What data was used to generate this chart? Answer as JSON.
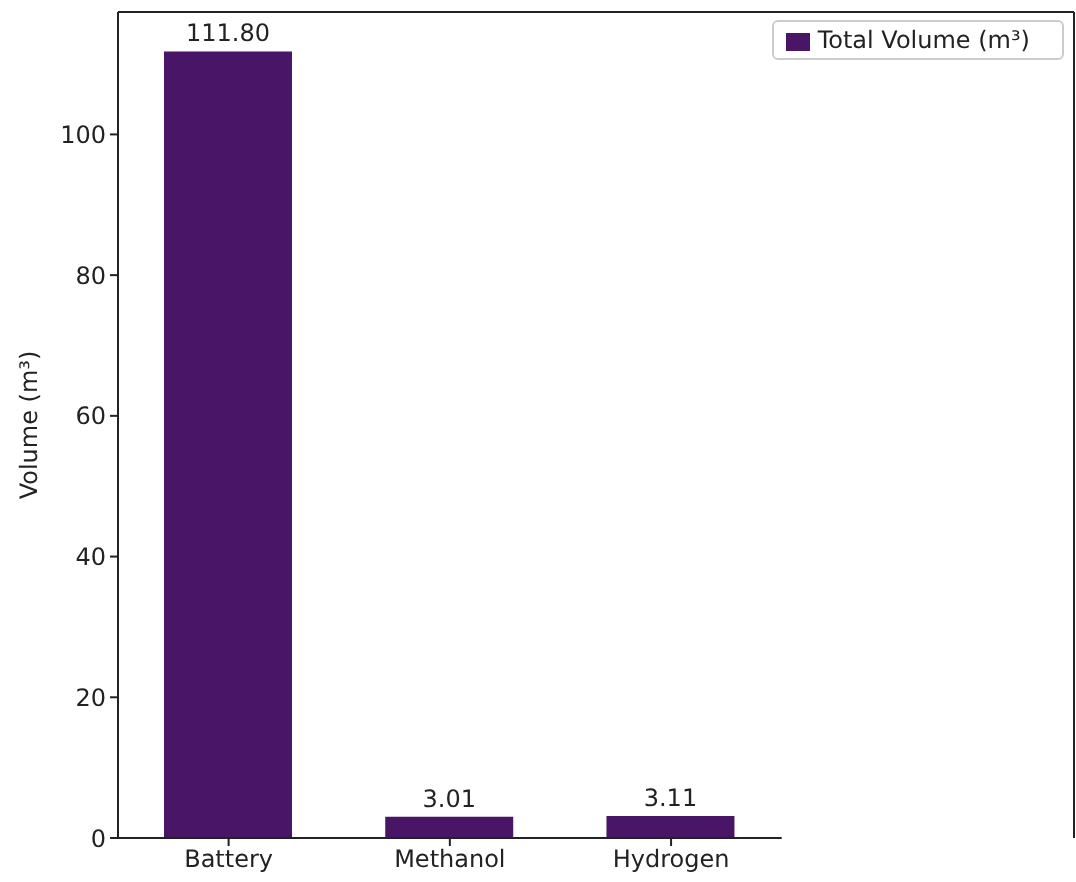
{
  "chart_data": {
    "type": "bar",
    "ylabel": "Volume (m³)",
    "categories": [
      "Battery",
      "Methanol",
      "Hydrogen"
    ],
    "series": [
      {
        "name": "Total Volume (m³)",
        "color": "#481567",
        "values": [
          111.8,
          3.01,
          3.11
        ],
        "value_labels": [
          "111.80",
          "3.01",
          "3.11"
        ]
      }
    ],
    "ylim": [
      0,
      117.4
    ],
    "yticks": [
      0,
      20,
      40,
      60,
      80,
      100
    ],
    "legend": "top right",
    "grid": false
  }
}
